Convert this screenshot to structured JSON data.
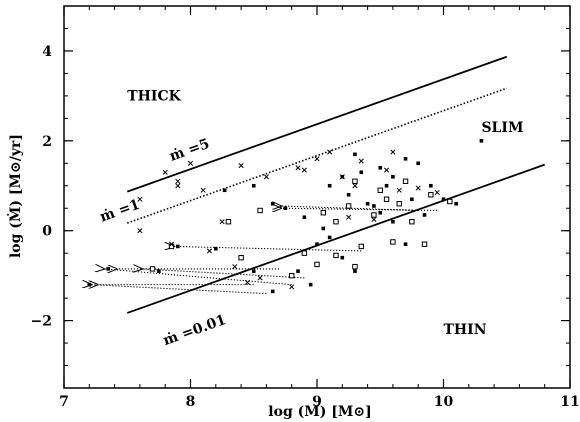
{
  "chart_data": {
    "type": "scatter",
    "title": "",
    "xlabel": "log (M)  [M⊙]",
    "ylabel": "log (Ṁ)  [M⊙/yr]",
    "xlim": [
      7,
      11
    ],
    "ylim": [
      -3.5,
      5
    ],
    "x_ticks": [
      7,
      8,
      9,
      10,
      11
    ],
    "y_ticks": [
      -2,
      0,
      2,
      4
    ],
    "x_tick_labels": [
      "7",
      "8",
      "9",
      "10",
      "11"
    ],
    "y_tick_labels": [
      "−2",
      "0",
      "2",
      "4"
    ],
    "grid": false,
    "region_labels": [
      {
        "text": "THICK",
        "x": 7.5,
        "y": 2.9
      },
      {
        "text": "SLIM",
        "x": 10.3,
        "y": 2.2
      },
      {
        "text": "THIN",
        "x": 10.0,
        "y": -2.3
      }
    ],
    "lines": [
      {
        "label": "ṁ =5",
        "style": "solid",
        "x": [
          7.5,
          10.5
        ],
        "y": [
          0.87,
          3.87
        ],
        "label_at": [
          7.85,
          1.55
        ]
      },
      {
        "label": "ṁ =1",
        "style": "dotted",
        "x": [
          7.5,
          10.5
        ],
        "y": [
          0.17,
          3.17
        ],
        "label_at": [
          7.3,
          0.2
        ]
      },
      {
        "label": "ṁ =0.01",
        "style": "solid",
        "x": [
          7.5,
          10.8
        ],
        "y": [
          -1.83,
          1.47
        ],
        "label_at": [
          7.8,
          -2.55
        ]
      }
    ],
    "arrows": [
      {
        "from": [
          8.7,
          0.55
        ],
        "to": [
          9.8,
          0.45
        ]
      },
      {
        "from": [
          8.7,
          0.5
        ],
        "to": [
          9.95,
          0.45
        ]
      },
      {
        "from": [
          7.85,
          -0.35
        ],
        "to": [
          9.35,
          -0.45
        ]
      },
      {
        "from": [
          7.4,
          -0.85
        ],
        "to": [
          8.7,
          -0.85
        ]
      },
      {
        "from": [
          7.6,
          -0.85
        ],
        "to": [
          8.9,
          -1.05
        ]
      },
      {
        "from": [
          7.2,
          -1.2
        ],
        "to": [
          8.6,
          -1.4
        ]
      },
      {
        "from": [
          7.25,
          -1.2
        ],
        "to": [
          8.5,
          -1.2
        ]
      },
      {
        "from": [
          7.3,
          -0.85
        ],
        "to": [
          8.8,
          -1.2
        ]
      }
    ],
    "series": [
      {
        "marker": "square-filled",
        "points": [
          [
            8.27,
            0.9
          ],
          [
            8.5,
            1.0
          ],
          [
            8.65,
            0.6
          ],
          [
            8.75,
            0.5
          ],
          [
            8.9,
            0.3
          ],
          [
            9.1,
            1.0
          ],
          [
            9.2,
            1.2
          ],
          [
            9.25,
            0.8
          ],
          [
            9.35,
            1.3
          ],
          [
            9.4,
            0.6
          ],
          [
            9.5,
            0.4
          ],
          [
            9.55,
            1.0
          ],
          [
            9.6,
            0.2
          ],
          [
            9.7,
            1.6
          ],
          [
            9.75,
            0.7
          ],
          [
            9.8,
            1.5
          ],
          [
            9.9,
            1.0
          ],
          [
            10.0,
            0.7
          ],
          [
            10.1,
            0.6
          ],
          [
            10.3,
            2.0
          ],
          [
            9.0,
            -0.3
          ],
          [
            9.2,
            -0.6
          ],
          [
            9.3,
            -0.9
          ],
          [
            8.95,
            -1.2
          ],
          [
            8.5,
            -0.9
          ],
          [
            8.65,
            -1.35
          ],
          [
            7.9,
            -0.35
          ],
          [
            8.2,
            -0.4
          ],
          [
            7.75,
            -0.9
          ],
          [
            7.35,
            -0.85
          ],
          [
            7.2,
            -1.2
          ],
          [
            9.05,
            0.05
          ],
          [
            9.45,
            0.55
          ],
          [
            9.6,
            1.2
          ],
          [
            9.85,
            0.35
          ],
          [
            9.7,
            -0.3
          ],
          [
            8.85,
            -0.9
          ],
          [
            9.1,
            -0.15
          ],
          [
            9.3,
            1.7
          ],
          [
            9.5,
            1.4
          ]
        ]
      },
      {
        "marker": "square-open",
        "points": [
          [
            8.3,
            0.2
          ],
          [
            8.55,
            0.45
          ],
          [
            9.05,
            0.4
          ],
          [
            9.15,
            0.2
          ],
          [
            9.3,
            1.1
          ],
          [
            9.45,
            0.35
          ],
          [
            9.5,
            0.9
          ],
          [
            9.65,
            0.6
          ],
          [
            9.7,
            1.1
          ],
          [
            9.75,
            0.2
          ],
          [
            9.85,
            -0.3
          ],
          [
            9.9,
            0.8
          ],
          [
            10.05,
            0.65
          ],
          [
            9.35,
            -0.35
          ],
          [
            9.3,
            -0.8
          ],
          [
            9.0,
            -0.75
          ],
          [
            8.8,
            -1.0
          ],
          [
            8.4,
            -0.6
          ],
          [
            7.85,
            -0.35
          ],
          [
            7.7,
            -0.85
          ],
          [
            9.6,
            -0.25
          ],
          [
            9.15,
            -0.55
          ],
          [
            8.9,
            -0.5
          ],
          [
            9.55,
            0.7
          ],
          [
            9.25,
            0.55
          ]
        ]
      },
      {
        "marker": "cross",
        "points": [
          [
            7.6,
            0.7
          ],
          [
            7.8,
            1.3
          ],
          [
            7.9,
            1.1
          ],
          [
            8.0,
            1.5
          ],
          [
            8.1,
            0.9
          ],
          [
            8.25,
            0.2
          ],
          [
            8.4,
            1.45
          ],
          [
            8.6,
            1.2
          ],
          [
            8.85,
            1.4
          ],
          [
            9.0,
            1.6
          ],
          [
            9.1,
            1.75
          ],
          [
            9.2,
            1.2
          ],
          [
            9.3,
            1.0
          ],
          [
            9.35,
            1.55
          ],
          [
            9.45,
            0.25
          ],
          [
            9.6,
            1.75
          ],
          [
            9.65,
            0.9
          ],
          [
            9.8,
            0.95
          ],
          [
            9.95,
            0.85
          ],
          [
            7.6,
            0.0
          ],
          [
            7.85,
            -0.3
          ],
          [
            8.15,
            -0.45
          ],
          [
            8.35,
            -0.8
          ],
          [
            8.45,
            -1.15
          ],
          [
            8.55,
            -1.05
          ],
          [
            8.8,
            -1.25
          ],
          [
            9.25,
            0.3
          ],
          [
            7.9,
            1.0
          ],
          [
            8.9,
            1.35
          ],
          [
            9.55,
            1.35
          ]
        ]
      }
    ]
  }
}
